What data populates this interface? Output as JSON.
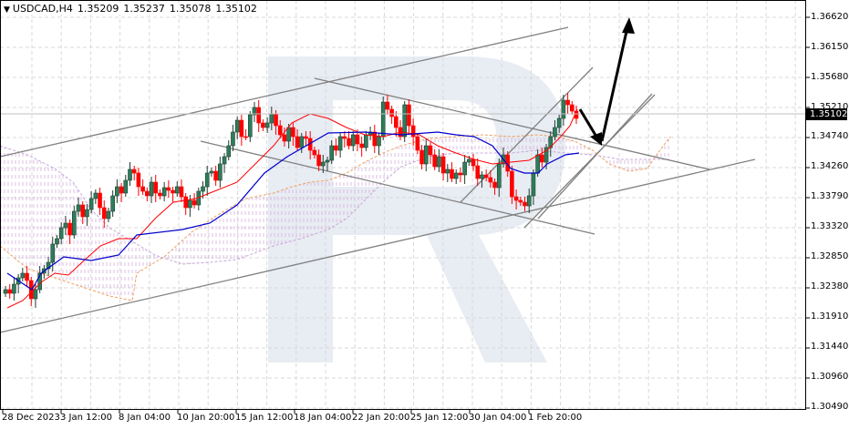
{
  "header": {
    "symbol": "USDCAD,H4",
    "open": "1.35209",
    "high": "1.35237",
    "low": "1.35078",
    "close": "1.35102"
  },
  "price_axis": {
    "labels": [
      "1.36620",
      "1.36150",
      "1.35680",
      "1.35210",
      "1.34740",
      "1.34260",
      "1.33790",
      "1.33320",
      "1.32850",
      "1.32380",
      "1.31910",
      "1.31440",
      "1.30960",
      "1.30490"
    ],
    "current_price": "1.35102"
  },
  "time_axis": {
    "labels": [
      "28 Dec 2023",
      "3 Jan 12:00",
      "8 Jan 04:00",
      "10 Jan 20:00",
      "15 Jan 12:00",
      "18 Jan 04:00",
      "22 Jan 20:00",
      "25 Jan 12:00",
      "30 Jan 04:00",
      "1 Feb 20:00"
    ]
  },
  "colors": {
    "bull_candle": "#2e7d5b",
    "bear_candle": "#ff0000",
    "tenkan": "#ff0000",
    "kijun": "#0000cc",
    "cloud_a": "#f0a060",
    "cloud_b": "#c8a8d8",
    "trendline": "#808080",
    "arrow": "#000000",
    "grid": "#d9d9d9",
    "watermark": "#e8ecf3"
  },
  "chart_data": {
    "type": "candlestick",
    "title": "USDCAD,H4 1.35209 1.35237 1.35078 1.35102",
    "instrument": "USDCAD",
    "timeframe": "H4",
    "xlabel": "",
    "ylabel": "",
    "ylim": [
      1.3049,
      1.3662
    ],
    "grid": true,
    "x_ticks": [
      "28 Dec 2023",
      "3 Jan 12:00",
      "8 Jan 04:00",
      "10 Jan 20:00",
      "15 Jan 12:00",
      "18 Jan 04:00",
      "22 Jan 20:00",
      "25 Jan 12:00",
      "30 Jan 04:00",
      "1 Feb 20:00"
    ],
    "y_ticks": [
      1.3662,
      1.3615,
      1.3568,
      1.3521,
      1.3474,
      1.3426,
      1.3379,
      1.3332,
      1.3285,
      1.3238,
      1.3191,
      1.3144,
      1.3096,
      1.3049
    ],
    "indicators": [
      "Ichimoku Kinko Hyo (Tenkan-sen red, Kijun-sen blue, Kumo cloud)"
    ],
    "annotations": [
      "Ascending channel (wide) from ~1.3180 to ~1.3660",
      "Descending channel from ~1.3570 to ~1.3330",
      "Small ascending channel around 1 Feb",
      "Black arrow down to ~1.3470 then up toward ~1.3660"
    ],
    "approx_close_path": [
      {
        "x": "28 Dec 2023",
        "close": 1.323
      },
      {
        "x": "3 Jan 12:00",
        "close": 1.335
      },
      {
        "x": "8 Jan 04:00",
        "close": 1.34
      },
      {
        "x": "10 Jan 20:00",
        "close": 1.342
      },
      {
        "x": "15 Jan 12:00",
        "close": 1.353
      },
      {
        "x": "18 Jan 04:00",
        "close": 1.346
      },
      {
        "x": "22 Jan 20:00",
        "close": 1.347
      },
      {
        "x": "25 Jan 12:00",
        "close": 1.343
      },
      {
        "x": "30 Jan 04:00",
        "close": 1.341
      },
      {
        "x": "1 Feb 20:00",
        "close": 1.344
      },
      {
        "x": "last",
        "close": 1.35102
      }
    ],
    "last_ohlc": {
      "open": 1.35209,
      "high": 1.35237,
      "low": 1.35078,
      "close": 1.35102
    }
  }
}
